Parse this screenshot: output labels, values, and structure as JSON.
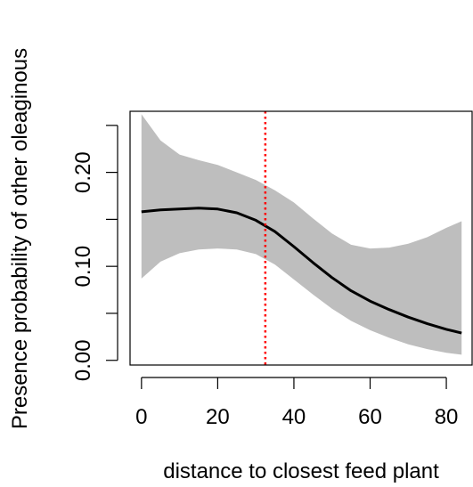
{
  "chart_data": {
    "type": "line",
    "title": "",
    "xlabel": "distance to closest feed plant",
    "ylabel": "Presence probability of other oleaginous",
    "xlim": [
      -3,
      87
    ],
    "ylim": [
      -0.005,
      0.265
    ],
    "x_ticks": [
      0,
      20,
      40,
      60,
      80
    ],
    "x_tick_labels": [
      "0",
      "20",
      "40",
      "60",
      "80"
    ],
    "y_ticks": [
      0.0,
      0.05,
      0.1,
      0.15,
      0.2,
      0.25
    ],
    "y_tick_labels": [
      "0.00",
      "",
      "0.10",
      "",
      "0.20",
      ""
    ],
    "grid": false,
    "legend": "none",
    "series": [
      {
        "role": "fitted",
        "x": [
          0,
          5,
          10,
          15,
          20,
          25,
          30,
          35,
          40,
          45,
          50,
          55,
          60,
          65,
          70,
          75,
          80,
          84
        ],
        "y": [
          0.158,
          0.16,
          0.161,
          0.162,
          0.161,
          0.157,
          0.149,
          0.137,
          0.121,
          0.104,
          0.088,
          0.074,
          0.063,
          0.054,
          0.046,
          0.039,
          0.033,
          0.029
        ]
      },
      {
        "role": "upper_ci",
        "x": [
          0,
          5,
          10,
          15,
          20,
          25,
          30,
          35,
          40,
          45,
          50,
          55,
          60,
          65,
          70,
          75,
          80,
          84
        ],
        "y": [
          0.262,
          0.234,
          0.219,
          0.213,
          0.208,
          0.2,
          0.192,
          0.181,
          0.168,
          0.151,
          0.135,
          0.123,
          0.119,
          0.12,
          0.124,
          0.131,
          0.141,
          0.148
        ]
      },
      {
        "role": "lower_ci",
        "x": [
          0,
          5,
          10,
          15,
          20,
          25,
          30,
          35,
          40,
          45,
          50,
          55,
          60,
          65,
          70,
          75,
          80,
          84
        ],
        "y": [
          0.087,
          0.105,
          0.114,
          0.118,
          0.119,
          0.118,
          0.113,
          0.102,
          0.086,
          0.07,
          0.055,
          0.042,
          0.032,
          0.024,
          0.017,
          0.012,
          0.008,
          0.006
        ]
      }
    ],
    "vline": {
      "x": 32.5
    },
    "colors": {
      "line": "#000000",
      "band": "#bebebe",
      "vline": "#ff0000",
      "axis": "#000000"
    }
  }
}
